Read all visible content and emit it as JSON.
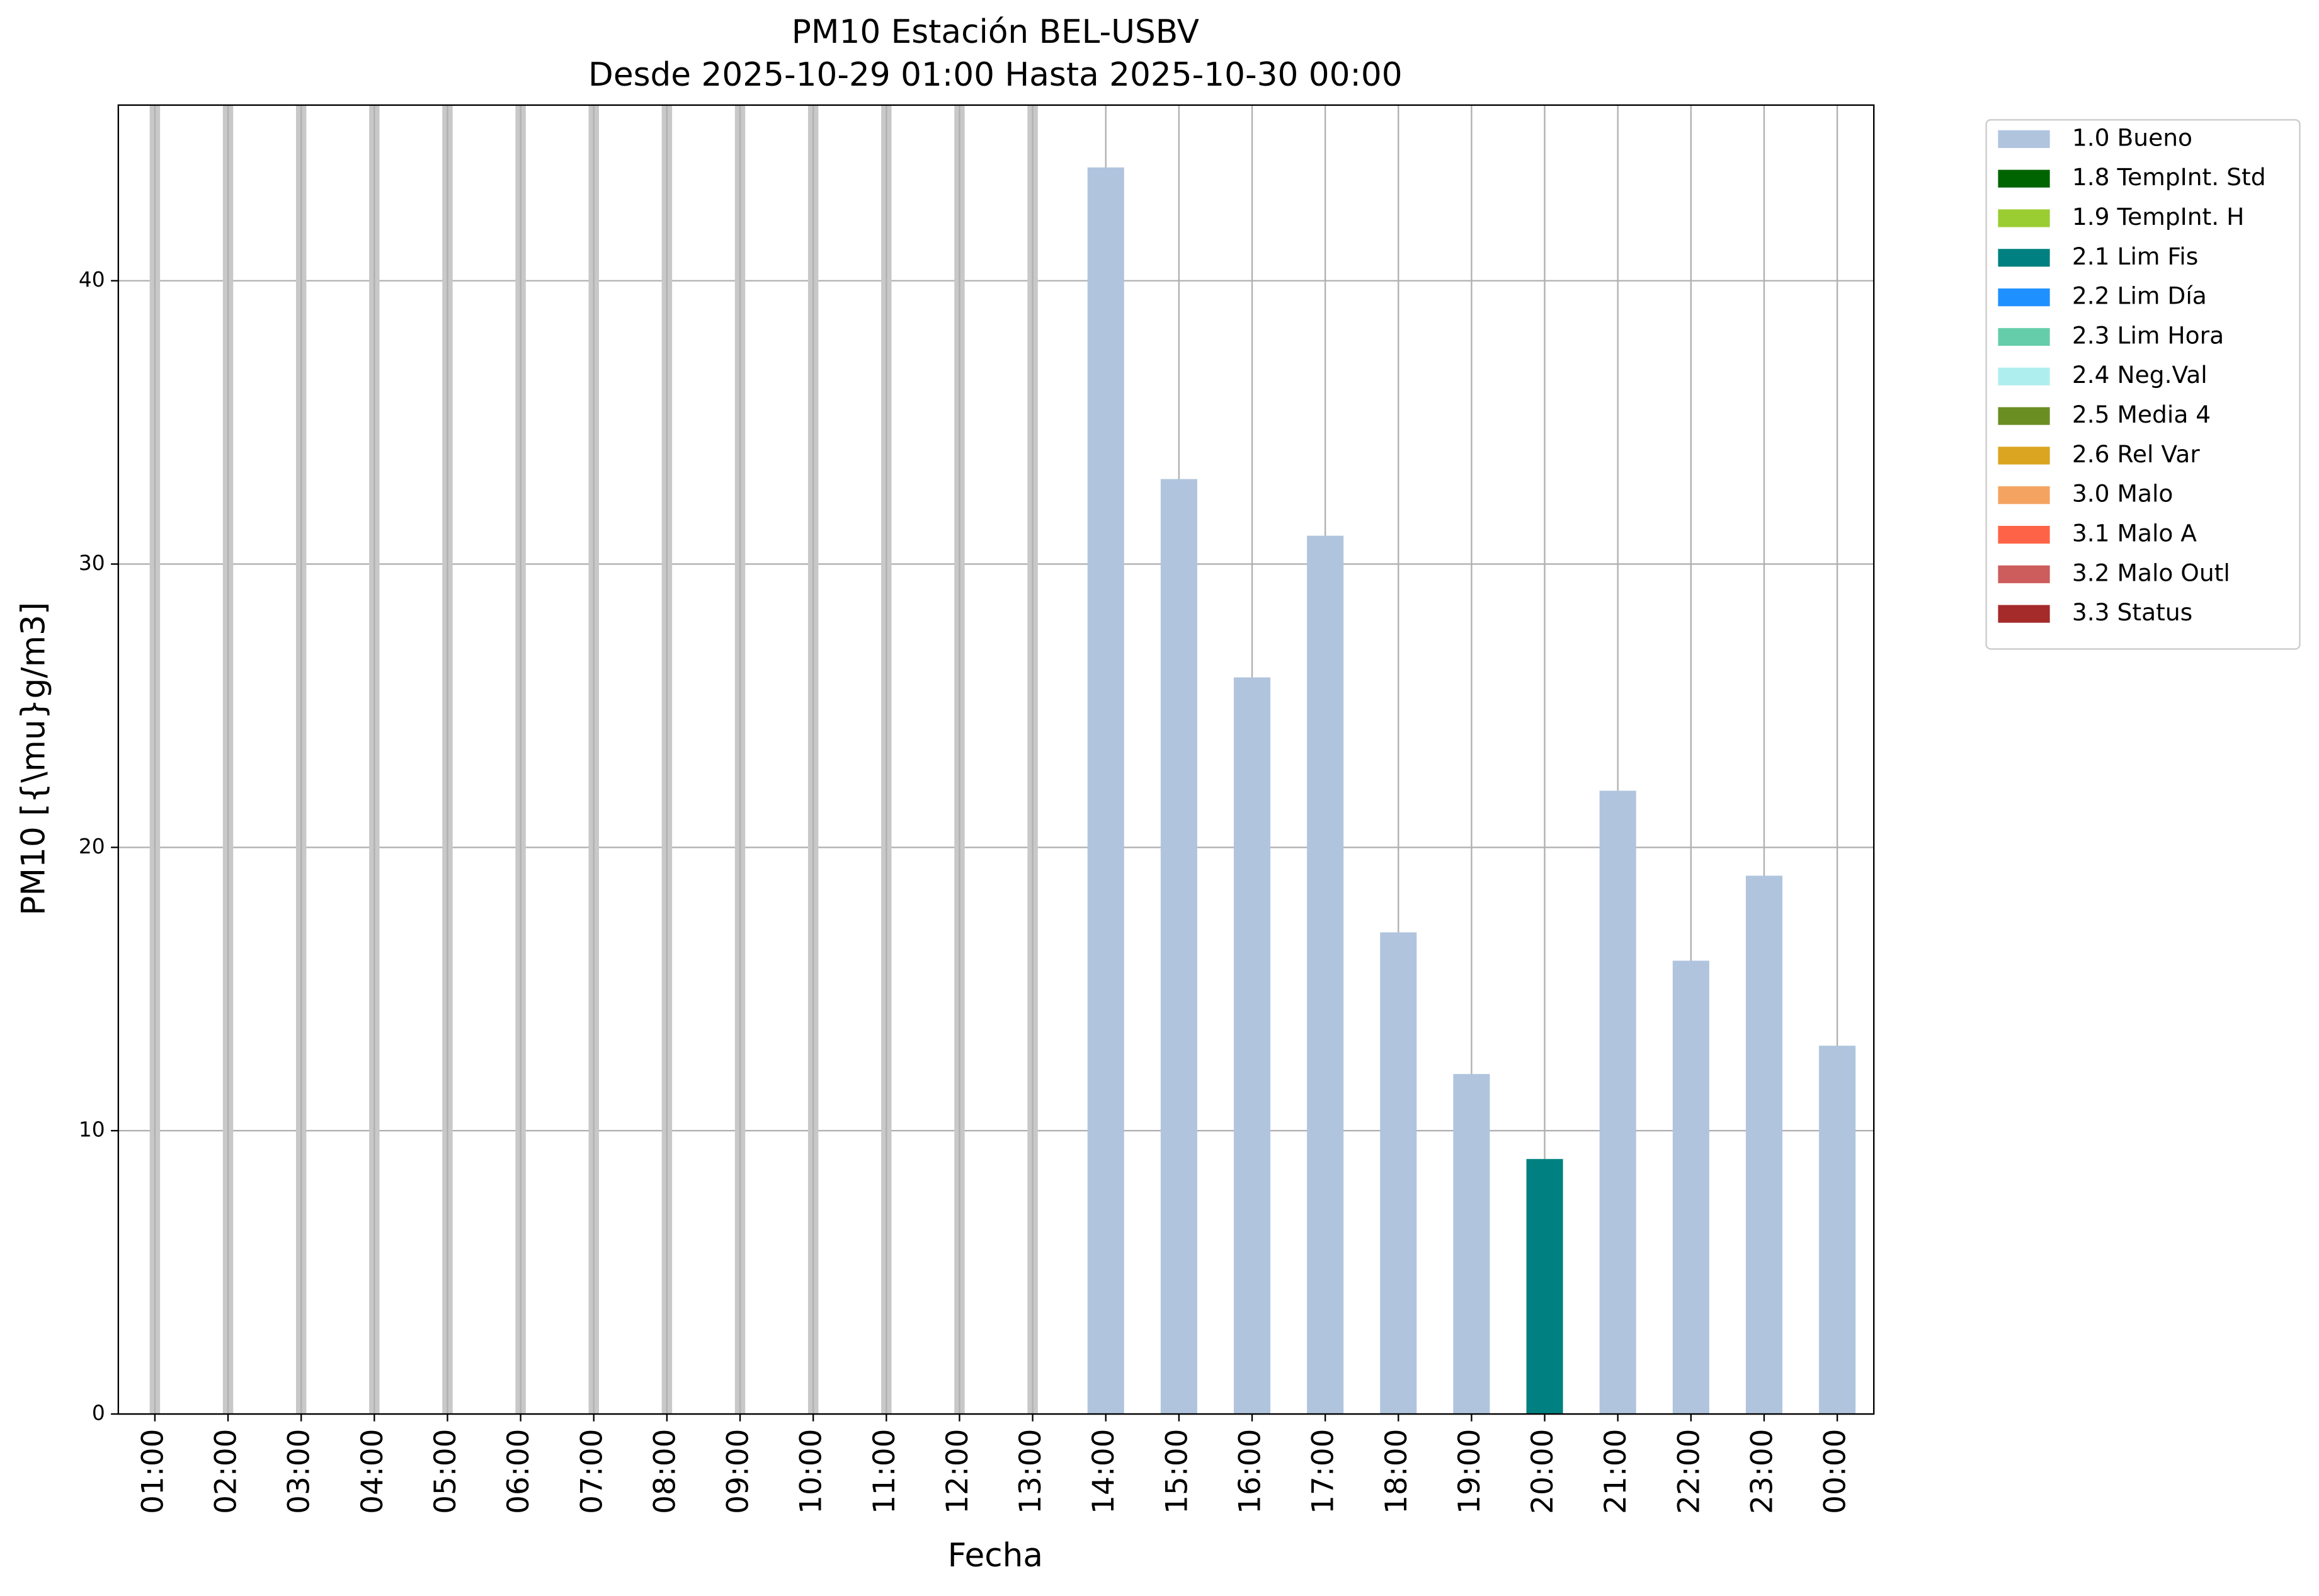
{
  "chart_data": {
    "type": "bar",
    "stacked": true,
    "title": "PM10 Estación BEL-USBV",
    "subtitle": "Desde 2025-10-29 01:00 Hasta 2025-10-30 00:00",
    "x_label": "Fecha",
    "y_label": "PM10 [{\\mu}g/m3]",
    "categories": [
      "01:00",
      "02:00",
      "03:00",
      "04:00",
      "05:00",
      "06:00",
      "07:00",
      "08:00",
      "09:00",
      "10:00",
      "11:00",
      "12:00",
      "13:00",
      "14:00",
      "15:00",
      "16:00",
      "17:00",
      "18:00",
      "19:00",
      "20:00",
      "21:00",
      "22:00",
      "23:00",
      "00:00"
    ],
    "series": [
      {
        "name": "1.0 Bueno",
        "color": "#b0c4de",
        "values": [
          null,
          null,
          null,
          null,
          null,
          null,
          null,
          null,
          null,
          null,
          null,
          null,
          null,
          44,
          33,
          26,
          31,
          17,
          12,
          null,
          22,
          16,
          19,
          13
        ]
      },
      {
        "name": "1.8 TempInt. Std",
        "color": "#006400",
        "values": [
          null,
          null,
          null,
          null,
          null,
          null,
          null,
          null,
          null,
          null,
          null,
          null,
          null,
          null,
          null,
          null,
          null,
          null,
          null,
          null,
          null,
          null,
          null,
          null
        ]
      },
      {
        "name": "1.9 TempInt. H",
        "color": "#9acd32",
        "values": [
          null,
          null,
          null,
          null,
          null,
          null,
          null,
          null,
          null,
          null,
          null,
          null,
          null,
          null,
          null,
          null,
          null,
          null,
          null,
          null,
          null,
          null,
          null,
          null
        ]
      },
      {
        "name": "2.1 Lim Fis",
        "color": "#008080",
        "values": [
          null,
          null,
          null,
          null,
          null,
          null,
          null,
          null,
          null,
          null,
          null,
          null,
          null,
          null,
          null,
          null,
          null,
          null,
          null,
          9,
          null,
          null,
          null,
          null
        ]
      },
      {
        "name": "2.2 Lim Día",
        "color": "#1e90ff",
        "values": [
          null,
          null,
          null,
          null,
          null,
          null,
          null,
          null,
          null,
          null,
          null,
          null,
          null,
          null,
          null,
          null,
          null,
          null,
          null,
          null,
          null,
          null,
          null,
          null
        ]
      },
      {
        "name": "2.3 Lim Hora",
        "color": "#66cdaa",
        "values": [
          null,
          null,
          null,
          null,
          null,
          null,
          null,
          null,
          null,
          null,
          null,
          null,
          null,
          null,
          null,
          null,
          null,
          null,
          null,
          null,
          null,
          null,
          null,
          null
        ]
      },
      {
        "name": "2.4 Neg.Val",
        "color": "#afeeee",
        "values": [
          null,
          null,
          null,
          null,
          null,
          null,
          null,
          null,
          null,
          null,
          null,
          null,
          null,
          null,
          null,
          null,
          null,
          null,
          null,
          null,
          null,
          null,
          null,
          null
        ]
      },
      {
        "name": "2.5 Media 4",
        "color": "#6b8e23",
        "values": [
          null,
          null,
          null,
          null,
          null,
          null,
          null,
          null,
          null,
          null,
          null,
          null,
          null,
          null,
          null,
          null,
          null,
          null,
          null,
          null,
          null,
          null,
          null,
          null
        ]
      },
      {
        "name": "2.6 Rel Var",
        "color": "#daa520",
        "values": [
          null,
          null,
          null,
          null,
          null,
          null,
          null,
          null,
          null,
          null,
          null,
          null,
          null,
          null,
          null,
          null,
          null,
          null,
          null,
          null,
          null,
          null,
          null,
          null
        ]
      },
      {
        "name": "3.0 Malo",
        "color": "#f4a460",
        "values": [
          null,
          null,
          null,
          null,
          null,
          null,
          null,
          null,
          null,
          null,
          null,
          null,
          null,
          null,
          null,
          null,
          null,
          null,
          null,
          null,
          null,
          null,
          null,
          null
        ]
      },
      {
        "name": "3.1 Malo A",
        "color": "#ff6347",
        "values": [
          null,
          null,
          null,
          null,
          null,
          null,
          null,
          null,
          null,
          null,
          null,
          null,
          null,
          null,
          null,
          null,
          null,
          null,
          null,
          null,
          null,
          null,
          null,
          null
        ]
      },
      {
        "name": "3.2 Malo Outl",
        "color": "#cd5c5c",
        "values": [
          null,
          null,
          null,
          null,
          null,
          null,
          null,
          null,
          null,
          null,
          null,
          null,
          null,
          null,
          null,
          null,
          null,
          null,
          null,
          null,
          null,
          null,
          null,
          null
        ]
      },
      {
        "name": "3.3 Status",
        "color": "#a52a2a",
        "values": [
          null,
          null,
          null,
          null,
          null,
          null,
          null,
          null,
          null,
          null,
          null,
          null,
          null,
          null,
          null,
          null,
          null,
          null,
          null,
          null,
          null,
          null,
          null,
          null
        ]
      }
    ],
    "ylim": [
      0,
      46.2
    ],
    "yticks": [
      0,
      10,
      20,
      30,
      40
    ],
    "grid": true,
    "legend": "outside right"
  }
}
